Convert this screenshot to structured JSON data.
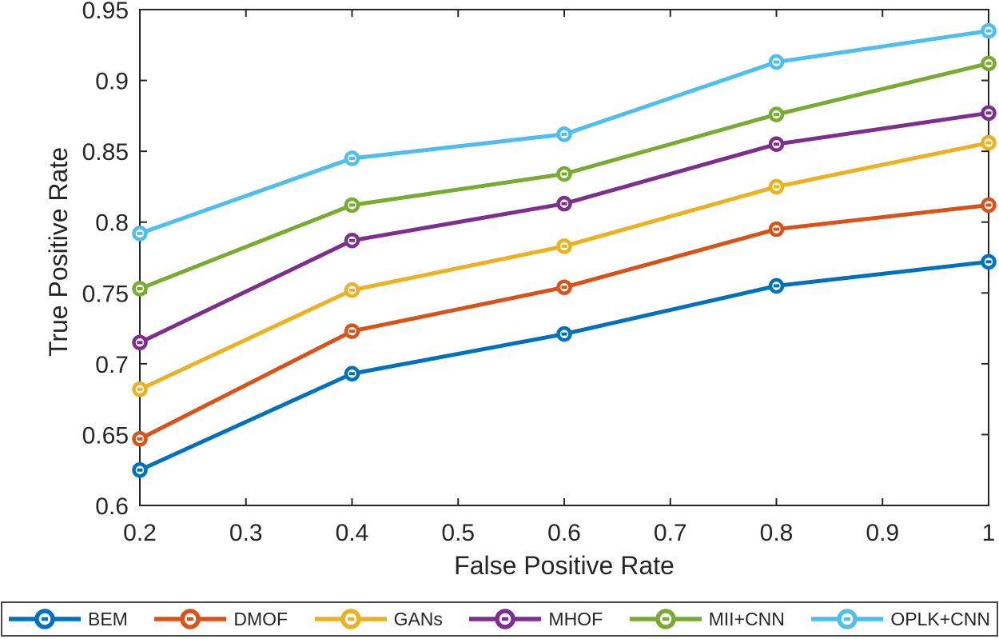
{
  "figure": {
    "background": "#ffffff",
    "axis_color": "#262626",
    "text_color": "#262626",
    "legend_border_color": "#4a4a4a"
  },
  "chart_data": {
    "type": "line",
    "title": "",
    "xlabel": "False Positive Rate",
    "ylabel": "True Positive Rate",
    "x": [
      0.2,
      0.4,
      0.6,
      0.8,
      1.0
    ],
    "xlim": [
      0.2,
      1.0
    ],
    "ylim": [
      0.6,
      0.95
    ],
    "xticks": [
      0.2,
      0.3,
      0.4,
      0.5,
      0.6,
      0.7,
      0.8,
      0.9,
      1
    ],
    "xtick_labels": [
      "0.2",
      "0.3",
      "0.4",
      "0.5",
      "0.6",
      "0.7",
      "0.8",
      "0.9",
      "1"
    ],
    "yticks": [
      0.6,
      0.65,
      0.7,
      0.75,
      0.8,
      0.85,
      0.9,
      0.95
    ],
    "ytick_labels": [
      "0.6",
      "0.65",
      "0.7",
      "0.75",
      "0.8",
      "0.85",
      "0.9",
      "0.95"
    ],
    "grid": false,
    "legend_position": "bottom",
    "marker": "open-circle",
    "series": [
      {
        "name": "BEM",
        "color": "#0072BD",
        "values": [
          0.625,
          0.693,
          0.721,
          0.755,
          0.772
        ]
      },
      {
        "name": "DMOF",
        "color": "#D95319",
        "values": [
          0.647,
          0.723,
          0.754,
          0.795,
          0.812
        ]
      },
      {
        "name": "GANs",
        "color": "#EDB120",
        "values": [
          0.682,
          0.752,
          0.783,
          0.825,
          0.856
        ]
      },
      {
        "name": "MHOF",
        "color": "#7E2F8E",
        "values": [
          0.715,
          0.787,
          0.813,
          0.855,
          0.877
        ]
      },
      {
        "name": "MII+CNN",
        "color": "#77AC30",
        "values": [
          0.753,
          0.812,
          0.834,
          0.876,
          0.912
        ]
      },
      {
        "name": "OPLK+CNN",
        "color": "#4DBEEE",
        "values": [
          0.792,
          0.845,
          0.862,
          0.913,
          0.935
        ]
      }
    ]
  }
}
